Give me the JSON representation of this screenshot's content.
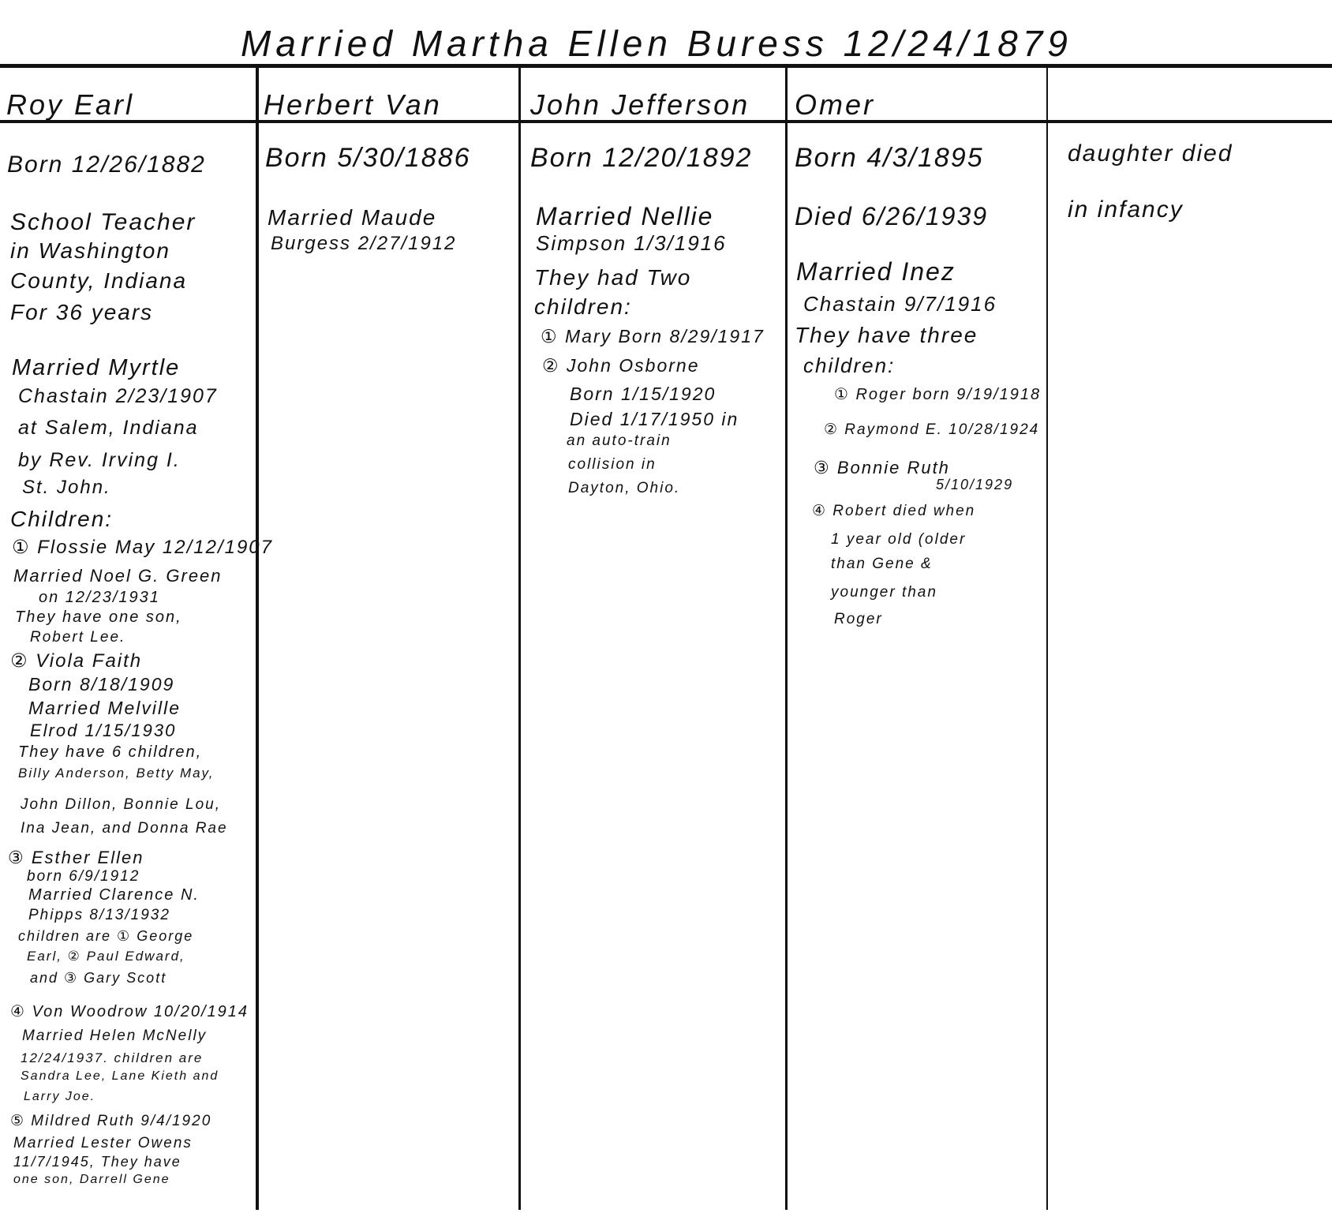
{
  "title": "Married Martha Ellen Buress 12/24/1879",
  "columns": [
    {
      "header": "Roy Earl",
      "lines": [
        "Born 12/26/1882",
        "School Teacher",
        "in Washington",
        "County, Indiana",
        "For 36 years",
        "Married Myrtle",
        "Chastain 2/23/1907",
        "at Salem, Indiana",
        "by Rev. Irving I.",
        "St. John.",
        "Children:",
        "① Flossie May 12/12/1907",
        "Married Noel G. Green",
        "on 12/23/1931",
        "They have one son,",
        "Robert Lee.",
        "② Viola Faith",
        "Born 8/18/1909",
        "Married Melville",
        "Elrod 1/15/1930",
        "They have 6 children,",
        "Billy Anderson, Betty May,",
        "John Dillon, Bonnie Lou,",
        "Ina Jean, and Donna Rae",
        "③ Esther Ellen",
        "born 6/9/1912",
        "Married Clarence N.",
        "Phipps 8/13/1932",
        "children are ① George",
        "Earl, ② Paul Edward,",
        "and ③ Gary Scott",
        "④ Von Woodrow 10/20/1914",
        "Married Helen McNelly",
        "12/24/1937. children are",
        "Sandra Lee, Lane Kieth and",
        "Larry Joe.",
        "⑤ Mildred Ruth 9/4/1920",
        "Married Lester Owens",
        "11/7/1945, They have",
        "one son, Darrell Gene"
      ]
    },
    {
      "header": "Herbert Van",
      "lines": [
        "Born 5/30/1886",
        "Married Maude",
        "Burgess 2/27/1912"
      ]
    },
    {
      "header": "John Jefferson",
      "lines": [
        "Born 12/20/1892",
        "Married Nellie",
        "Simpson 1/3/1916",
        "They had Two",
        "children:",
        "① Mary Born 8/29/1917",
        "② John Osborne",
        "Born 1/15/1920",
        "Died 1/17/1950 in",
        "an auto-train",
        "collision in",
        "Dayton, Ohio."
      ]
    },
    {
      "header": "Omer",
      "lines": [
        "Born 4/3/1895",
        "Died 6/26/1939",
        "Married Inez",
        "Chastain 9/7/1916",
        "They have three",
        "children:",
        "① Roger born 9/19/1918",
        "② Raymond E. 10/28/1924",
        "③ Bonnie Ruth",
        "5/10/1929",
        "④ Robert died when",
        "1 year old (older",
        "than Gene &",
        "younger than",
        "Roger"
      ]
    },
    {
      "header": "",
      "lines": [
        "daughter died",
        "in infancy"
      ]
    }
  ]
}
